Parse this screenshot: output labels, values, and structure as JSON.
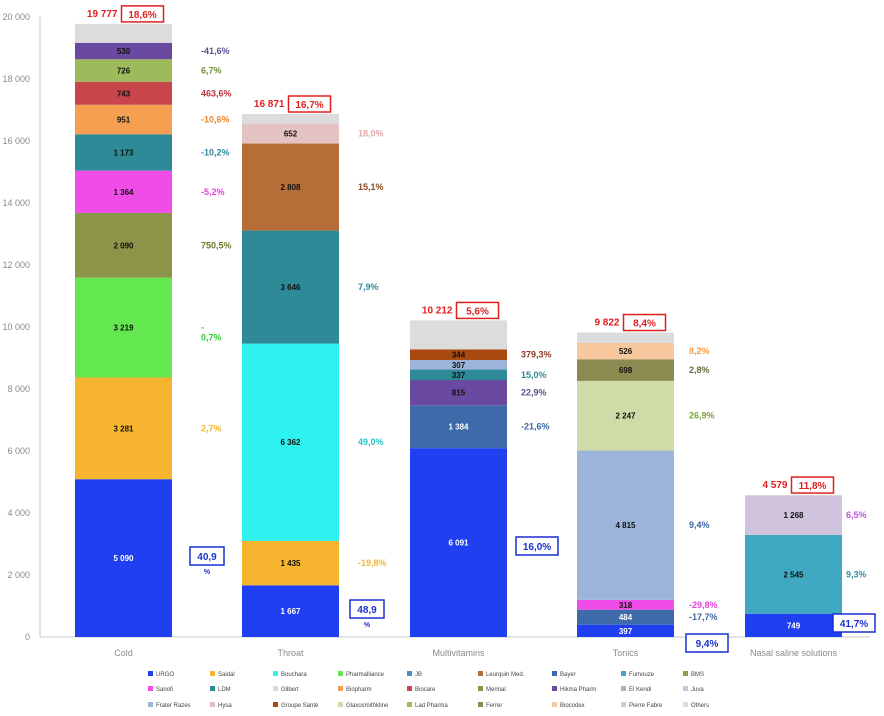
{
  "chart_data": {
    "type": "bar",
    "stacked": true,
    "ylim": [
      0,
      20000
    ],
    "yticks": [
      {
        "value": 0,
        "label": "0"
      },
      {
        "value": 2000,
        "label": "2 000"
      },
      {
        "value": 4000,
        "label": "4 000"
      },
      {
        "value": 6000,
        "label": "6 000"
      },
      {
        "value": 8000,
        "label": "8 000"
      },
      {
        "value": 10000,
        "label": "10 000"
      },
      {
        "value": 12000,
        "label": "12 000"
      },
      {
        "value": 14000,
        "label": "14 000"
      },
      {
        "value": 16000,
        "label": "16 000"
      },
      {
        "value": 18000,
        "label": "18 000"
      },
      {
        "value": 20000,
        "label": "20 000"
      }
    ],
    "grid": false,
    "legend_position": "bottom",
    "categories": [
      {
        "name": "Cold",
        "total_label": "19 777",
        "total_value": 19777,
        "growth_label": "18,6%",
        "segments": [
          {
            "series": "URGO",
            "value": 5090,
            "label": "5 090",
            "growth": ""
          },
          {
            "series": "Saidal",
            "value": 3281,
            "label": "3 281",
            "growth": "2,7%"
          },
          {
            "series": "Pharmalliance",
            "value": 3219,
            "label": "3 219",
            "growth": "-\n0,7%"
          },
          {
            "series": "Merinal",
            "value": 2090,
            "label": "2 090",
            "growth": "750,5%"
          },
          {
            "series": "Sanofi",
            "value": 1364,
            "label": "1 364",
            "growth": "-5,2%"
          },
          {
            "series": "LDM",
            "value": 1173,
            "label": "1 173",
            "growth": "-10,2%"
          },
          {
            "series": "Biopharm",
            "value": 951,
            "label": "951",
            "growth": "-10,6%"
          },
          {
            "series": "Biocare",
            "value": 743,
            "label": "743",
            "growth": "463,6%"
          },
          {
            "series": "Lad Pharma",
            "value": 726,
            "label": "726",
            "growth": "6,7%"
          },
          {
            "series": "Hikma Pharm",
            "value": 530,
            "label": "530",
            "growth": "-41,6%"
          },
          {
            "series": "Others",
            "value": 610,
            "label": "",
            "growth": ""
          }
        ],
        "boxed_growth": "40,9\n%"
      },
      {
        "name": "Throat",
        "total_label": "16 871",
        "total_value": 16871,
        "growth_label": "16,7%",
        "segments": [
          {
            "series": "URGO",
            "value": 1667,
            "label": "1 667",
            "growth": ""
          },
          {
            "series": "Saidal",
            "value": 1435,
            "label": "1 435",
            "growth": "-19,8%"
          },
          {
            "series": "Bouchara",
            "value": 6362,
            "label": "6 362",
            "growth": "49,0%"
          },
          {
            "series": "LDM",
            "value": 3646,
            "label": "3 646",
            "growth": "7,9%"
          },
          {
            "series": "Leurquin Med.",
            "value": 2808,
            "label": "2 808",
            "growth": "15,1%"
          },
          {
            "series": "Pierre Fabre",
            "value": 652,
            "label": "652",
            "growth": "18,0%"
          },
          {
            "series": "Others",
            "value": 301,
            "label": "",
            "growth": ""
          }
        ],
        "boxed_growth": "48,9\n%"
      },
      {
        "name": "Multivitamins",
        "total_label": "10 212",
        "total_value": 10212,
        "growth_label": "5,6%",
        "segments": [
          {
            "series": "URGO",
            "value": 6091,
            "label": "6 091",
            "growth": ""
          },
          {
            "series": "Bayer",
            "value": 1384,
            "label": "1 384",
            "growth": "-21,6%"
          },
          {
            "series": "Hikma Pharm",
            "value": 815,
            "label": "815",
            "growth": "22,9%"
          },
          {
            "series": "LDM",
            "value": 337,
            "label": "337",
            "growth": "15,0%"
          },
          {
            "series": "Frater Razes",
            "value": 307,
            "label": "307",
            "growth": ""
          },
          {
            "series": "Groupe Santé",
            "value": 344,
            "label": "344",
            "growth": "379,3%"
          },
          {
            "series": "Others",
            "value": 934,
            "label": "",
            "growth": ""
          }
        ],
        "boxed_growth": "16,0%"
      },
      {
        "name": "Tonics",
        "total_label": "9 822",
        "total_value": 9822,
        "growth_label": "8,4%",
        "segments": [
          {
            "series": "URGO",
            "value": 397,
            "label": "397",
            "growth": ""
          },
          {
            "series": "Bayer",
            "value": 484,
            "label": "484",
            "growth": "-17,7%"
          },
          {
            "series": "Sanofi",
            "value": 318,
            "label": "318",
            "growth": "-29,8%"
          },
          {
            "series": "Frater Razes",
            "value": 4815,
            "label": "4 815",
            "growth": "9,4%"
          },
          {
            "series": "Glaxosmithkline",
            "value": 2247,
            "label": "2 247",
            "growth": "26,9%"
          },
          {
            "series": "Ferrer",
            "value": 698,
            "label": "698",
            "growth": "2,8%"
          },
          {
            "series": "Biocodex",
            "value": 526,
            "label": "526",
            "growth": "8,2%"
          },
          {
            "series": "Others",
            "value": 337,
            "label": "",
            "growth": ""
          }
        ],
        "boxed_growth": "9,4%"
      },
      {
        "name": "Nasal saline solutions",
        "total_label": "4 579",
        "total_value": 4579,
        "growth_label": "11,8%",
        "segments": [
          {
            "series": "URGO",
            "value": 749,
            "label": "749",
            "growth": ""
          },
          {
            "series": "Fumouze",
            "value": 2545,
            "label": "2 545",
            "growth": "9,3%"
          },
          {
            "series": "Juva",
            "value": 1268,
            "label": "1 268",
            "growth": "6,5%"
          },
          {
            "series": "Others",
            "value": 17,
            "label": "",
            "growth": ""
          }
        ],
        "boxed_growth": "41,7%"
      }
    ],
    "legend": [
      {
        "name": "URGO",
        "color": "#1f3ff0"
      },
      {
        "name": "Saidal",
        "color": "#f6b42f"
      },
      {
        "name": "Bouchara",
        "color": "#2ef2ef"
      },
      {
        "name": "Pharmalliance",
        "color": "#63e94f"
      },
      {
        "name": "JB",
        "color": "#4a8fbe"
      },
      {
        "name": "Leurquin Med.",
        "color": "#b66e39"
      },
      {
        "name": "Bayer",
        "color": "#3d6aa8"
      },
      {
        "name": "Fumouze",
        "color": "#41a8c4"
      },
      {
        "name": "BMS",
        "color": "#8d9c4d"
      },
      {
        "name": "Sanofi",
        "color": "#f04ce8"
      },
      {
        "name": "LDM",
        "color": "#2d8a96"
      },
      {
        "name": "Gilbert",
        "color": "#d9d9d9"
      },
      {
        "name": "Biopharm",
        "color": "#f4a050"
      },
      {
        "name": "Biocare",
        "color": "#c8454b"
      },
      {
        "name": "Merinal",
        "color": "#8c9447"
      },
      {
        "name": "Hikma Pharm",
        "color": "#6a4aa0"
      },
      {
        "name": "El Kendi",
        "color": "#b7b3a0"
      },
      {
        "name": "Juva",
        "color": "#cfc3de"
      },
      {
        "name": "Frater Razes",
        "color": "#9db4da"
      },
      {
        "name": "Hysa",
        "color": "#e1bcc7"
      },
      {
        "name": "Groupe Santé",
        "color": "#a9480f"
      },
      {
        "name": "Glaxosmithkline",
        "color": "#cfdca8"
      },
      {
        "name": "Lad Pharma",
        "color": "#9dba5d"
      },
      {
        "name": "Ferrer",
        "color": "#8b8a50"
      },
      {
        "name": "Biocodex",
        "color": "#f7c89d"
      },
      {
        "name": "Pierre Fabre",
        "color": "#e6c3c3"
      },
      {
        "name": "Others",
        "color": "#dcdcdc"
      }
    ]
  }
}
